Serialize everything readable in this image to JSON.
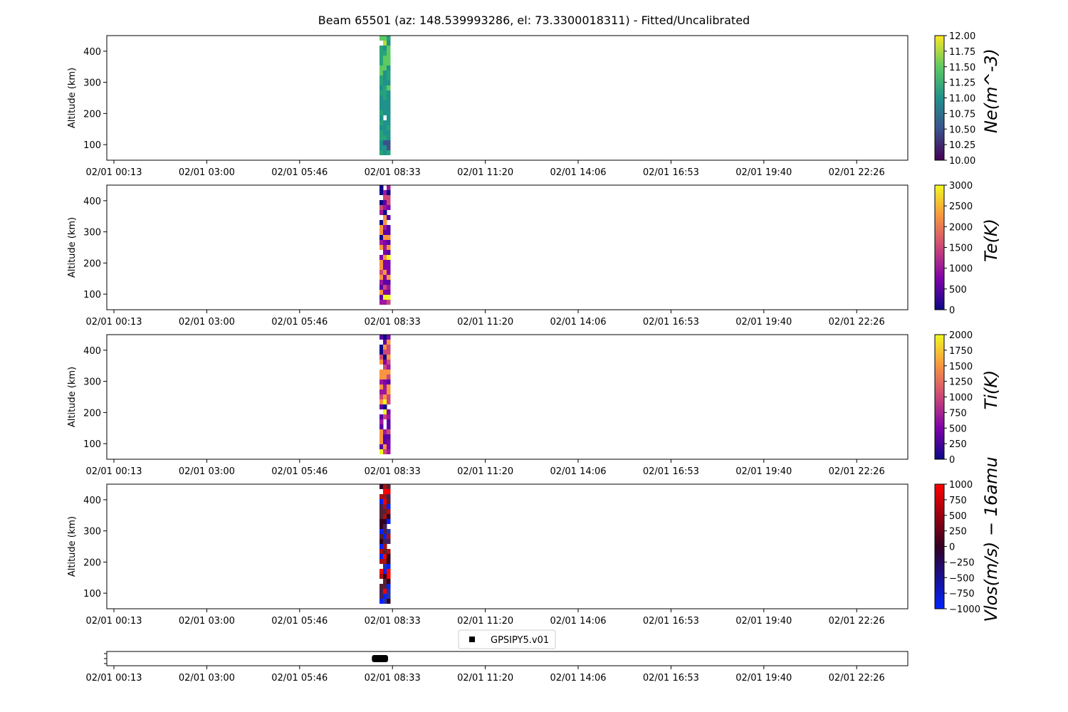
{
  "figure": {
    "title": "Beam 65501 (az: 148.539993286, el: 73.3300018311) - Fitted/Uncalibrated"
  },
  "time_ticks": [
    "02/01 00:13",
    "02/01 03:00",
    "02/01 05:46",
    "02/01 08:33",
    "02/01 11:20",
    "02/01 14:06",
    "02/01 16:53",
    "02/01 19:40",
    "02/01 22:26"
  ],
  "chart_data": [
    {
      "type": "heatmap",
      "panel": "ne",
      "ylabel": "Altitude (km)",
      "yticks": [
        100,
        200,
        300,
        400
      ],
      "ylim": [
        50,
        450
      ],
      "colorbar": {
        "label": "Ne(m^-3)",
        "ticks": [
          "10.00",
          "10.25",
          "10.50",
          "10.75",
          "11.00",
          "11.25",
          "11.50",
          "11.75",
          "12.00"
        ],
        "range": [
          10,
          12
        ],
        "colormap": "viridis"
      },
      "data_band": {
        "time_start": "02/01 08:00",
        "time_end": "02/01 08:20",
        "alt_min": 80,
        "alt_max": 450
      }
    },
    {
      "type": "heatmap",
      "panel": "te",
      "ylabel": "Altitude (km)",
      "yticks": [
        100,
        200,
        300,
        400
      ],
      "ylim": [
        50,
        450
      ],
      "colorbar": {
        "label": "Te(K)",
        "ticks": [
          "0",
          "500",
          "1000",
          "1500",
          "2000",
          "2500",
          "3000"
        ],
        "range": [
          0,
          3000
        ],
        "colormap": "plasma"
      },
      "data_band": {
        "time_start": "02/01 08:00",
        "time_end": "02/01 08:20",
        "alt_min": 80,
        "alt_max": 450
      }
    },
    {
      "type": "heatmap",
      "panel": "ti",
      "ylabel": "Altitude (km)",
      "yticks": [
        100,
        200,
        300,
        400
      ],
      "ylim": [
        50,
        450
      ],
      "colorbar": {
        "label": "Ti(K)",
        "ticks": [
          "0",
          "250",
          "500",
          "750",
          "1000",
          "1250",
          "1500",
          "1750",
          "2000"
        ],
        "range": [
          0,
          2000
        ],
        "colormap": "plasma"
      },
      "data_band": {
        "time_start": "02/01 08:00",
        "time_end": "02/01 08:20",
        "alt_min": 80,
        "alt_max": 450
      }
    },
    {
      "type": "heatmap",
      "panel": "vlos",
      "ylabel": "Altitude (km)",
      "yticks": [
        100,
        200,
        300,
        400
      ],
      "ylim": [
        50,
        450
      ],
      "colorbar": {
        "label": "Vlos(m/s) − 16amu",
        "ticks": [
          "−1000",
          "−750",
          "−500",
          "−250",
          "0",
          "250",
          "500",
          "750",
          "1000"
        ],
        "range": [
          -1000,
          1000
        ],
        "colormap": "blue-red"
      },
      "data_band": {
        "time_start": "02/01 08:00",
        "time_end": "02/01 08:20",
        "alt_min": 80,
        "alt_max": 450
      }
    },
    {
      "type": "scatter",
      "panel": "gps",
      "legend": {
        "label": "GPSIPY5.v01",
        "placement": "top-center",
        "marker": "square"
      },
      "series": [
        {
          "name": "GPSIPY5.v01",
          "x_start": "02/01 07:56",
          "x_end": "02/01 08:25"
        }
      ]
    }
  ]
}
